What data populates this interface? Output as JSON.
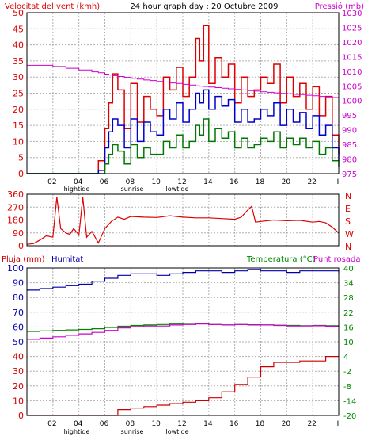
{
  "title": "24 hour graph day : 20 Octubre 2009",
  "colors": {
    "gust": "#dd0000",
    "average": "#0000cc",
    "low": "#007700",
    "pressure": "#cc00cc",
    "direction": "#dd0000",
    "rain": "#cc0000",
    "humidity": "#0000aa",
    "temperature": "#008800",
    "dewpoint": "#cc00cc",
    "frame": "#000000",
    "grid": "#b0b0b0"
  },
  "x_ticks": [
    "02",
    "04",
    "06",
    "08",
    "10",
    "12",
    "14",
    "16",
    "18",
    "20",
    "22",
    "I"
  ],
  "chart_data": [
    {
      "type": "line",
      "title": "",
      "ylabel": "Velocitat del vent (kmh)",
      "y2label": "Pressió (mb)",
      "ylim": [
        0,
        50
      ],
      "y2lim": [
        975,
        1030
      ],
      "yticks": [
        0,
        5,
        10,
        15,
        20,
        25,
        30,
        35,
        40,
        45,
        50
      ],
      "y2ticks": [
        975,
        980,
        985,
        990,
        995,
        1000,
        1005,
        1010,
        1015,
        1020,
        1025,
        1030
      ],
      "annotations": [
        "hightide",
        "sunrise",
        "lowtide"
      ],
      "x": [
        0,
        1,
        2,
        3,
        4,
        5,
        5.5,
        6,
        6.3,
        6.6,
        7,
        7.5,
        8,
        8.5,
        9,
        9.5,
        10,
        10.5,
        11,
        11.5,
        12,
        12.5,
        13,
        13.3,
        13.6,
        14,
        14.5,
        15,
        15.5,
        16,
        16.5,
        17,
        17.5,
        18,
        18.5,
        19,
        19.5,
        20,
        20.5,
        21,
        21.5,
        22,
        22.5,
        23,
        23.5,
        24
      ],
      "series": [
        {
          "name": "",
          "axis": "left",
          "color_key": "gust",
          "values": [
            0,
            0,
            0,
            0,
            0,
            0,
            4,
            14,
            22,
            31,
            26,
            14,
            28,
            16,
            24,
            20,
            18,
            30,
            26,
            33,
            24,
            30,
            42,
            35,
            46,
            28,
            36,
            30,
            34,
            22,
            30,
            24,
            26,
            30,
            28,
            34,
            22,
            30,
            24,
            28,
            20,
            27,
            18,
            24,
            12,
            6
          ]
        },
        {
          "name": "",
          "axis": "left",
          "color_key": "average",
          "values": [
            0,
            0,
            0,
            0,
            0,
            0,
            1,
            8,
            13,
            17,
            15,
            8,
            17,
            10,
            16,
            13,
            12,
            20,
            17,
            22,
            16,
            20,
            25,
            22,
            26,
            20,
            24,
            21,
            23,
            16,
            20,
            16,
            17,
            20,
            18,
            22,
            15,
            20,
            16,
            19,
            14,
            18,
            12,
            15,
            8,
            4
          ]
        },
        {
          "name": "",
          "axis": "left",
          "color_key": "low",
          "values": [
            0,
            0,
            0,
            0,
            0,
            0,
            0,
            3,
            6,
            9,
            7,
            3,
            9,
            5,
            8,
            6,
            6,
            10,
            8,
            12,
            8,
            10,
            15,
            12,
            17,
            10,
            14,
            11,
            13,
            8,
            11,
            8,
            9,
            11,
            10,
            13,
            8,
            11,
            9,
            11,
            8,
            10,
            6,
            8,
            4,
            2
          ]
        },
        {
          "name": "",
          "axis": "right",
          "color_key": "pressure",
          "values": [
            1012,
            1012,
            1011.6,
            1011,
            1010.4,
            1009.8,
            1009.5,
            1009,
            1008.7,
            1008.5,
            1008.2,
            1007.9,
            1007.6,
            1007.3,
            1007,
            1006.8,
            1006.5,
            1006.3,
            1006,
            1005.8,
            1005.5,
            1005.3,
            1005,
            1004.9,
            1004.8,
            1004.6,
            1004.4,
            1004.2,
            1004,
            1003.8,
            1003.6,
            1003.4,
            1003.2,
            1003,
            1002.8,
            1002.6,
            1002.4,
            1002.3,
            1002.1,
            1002,
            1001.8,
            1001.6,
            1001.4,
            1001.2,
            1001,
            1001
          ]
        }
      ]
    },
    {
      "type": "line",
      "title": "",
      "ylabel": "",
      "y2labels": [
        "N",
        "W",
        "S",
        "E",
        "N"
      ],
      "ylim": [
        0,
        360
      ],
      "yticks": [
        0,
        90,
        180,
        270,
        360
      ],
      "x": [
        0,
        0.5,
        1,
        1.5,
        2,
        2.3,
        2.6,
        3,
        3.3,
        3.6,
        4,
        4.3,
        4.6,
        5,
        5.5,
        6,
        6.5,
        7,
        7.5,
        8,
        9,
        10,
        11,
        12,
        13,
        14,
        15,
        16,
        16.5,
        17,
        17.3,
        17.6,
        18,
        19,
        20,
        21,
        22,
        22.5,
        23,
        23.5,
        24
      ],
      "series": [
        {
          "name": "",
          "color_key": "direction",
          "values": [
            10,
            15,
            40,
            70,
            60,
            340,
            120,
            90,
            80,
            120,
            75,
            340,
            60,
            100,
            20,
            120,
            170,
            200,
            185,
            205,
            200,
            198,
            210,
            200,
            195,
            195,
            190,
            185,
            200,
            250,
            275,
            165,
            170,
            180,
            175,
            178,
            165,
            170,
            160,
            130,
            90
          ]
        }
      ]
    },
    {
      "type": "line",
      "title": "",
      "ylabel": "Pluja (mm)",
      "ylabel2": "Humitat",
      "y2label": "Temperatura (°C)",
      "y2label2": "Punt rosada",
      "ylim": [
        0,
        100
      ],
      "yticks": [
        0,
        10,
        20,
        30,
        40,
        50,
        60,
        70,
        80,
        90,
        100
      ],
      "y2lim": [
        -20,
        40
      ],
      "y2ticks": [
        -20,
        -14,
        -8,
        -2,
        4,
        10,
        16,
        22,
        28,
        34,
        40
      ],
      "x": [
        0,
        1,
        2,
        3,
        4,
        5,
        6,
        7,
        8,
        9,
        10,
        11,
        12,
        13,
        14,
        15,
        16,
        17,
        18,
        19,
        20,
        21,
        22,
        23,
        24
      ],
      "series": [
        {
          "name": "",
          "axis": "left",
          "color_key": "rain",
          "values": [
            0,
            0,
            0,
            0,
            0,
            0,
            0,
            4,
            5,
            6,
            7,
            8,
            9,
            10,
            12,
            16,
            21,
            26,
            33,
            36,
            36,
            37,
            37,
            40,
            40
          ]
        },
        {
          "name": "",
          "axis": "left",
          "color_key": "humidity",
          "values": [
            85,
            86,
            87,
            88,
            89,
            91,
            93,
            95,
            96,
            96,
            95,
            96,
            97,
            98,
            98,
            97,
            98,
            99,
            98,
            98,
            97,
            98,
            98,
            98,
            97
          ]
        },
        {
          "name": "",
          "axis": "right",
          "color_key": "temperature",
          "values": [
            14.2,
            14.4,
            14.6,
            14.8,
            15,
            15.3,
            15.8,
            16.3,
            16.6,
            16.8,
            17,
            17.2,
            17.5,
            17.4,
            17,
            16.8,
            17,
            16.9,
            16.8,
            16.7,
            16.6,
            16.5,
            16.6,
            16.5,
            16.3
          ]
        },
        {
          "name": "",
          "axis": "right",
          "color_key": "dewpoint",
          "values": [
            11,
            11.5,
            12,
            12.6,
            13.2,
            13.8,
            14.6,
            15.6,
            16.2,
            16.4,
            16.4,
            16.8,
            17,
            17.2,
            17,
            16.8,
            17,
            16.8,
            16.8,
            16.6,
            16.4,
            16.4,
            16.5,
            16.3,
            16.2
          ]
        }
      ]
    }
  ]
}
